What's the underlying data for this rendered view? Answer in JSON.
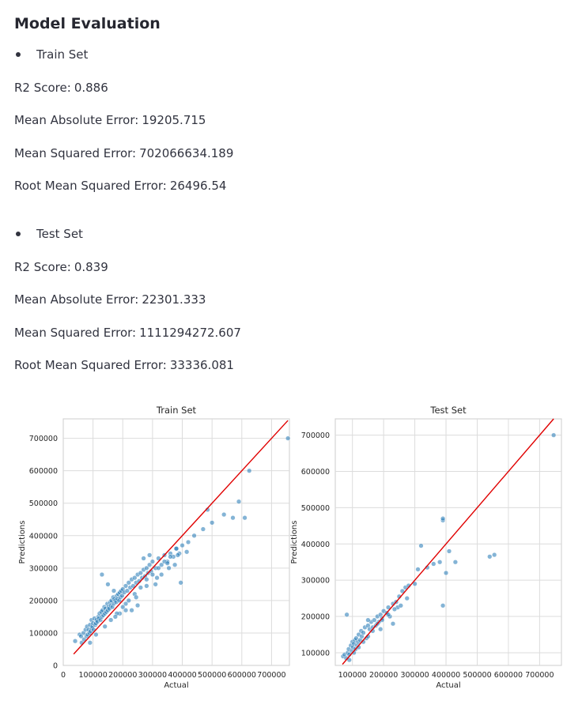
{
  "heading": "Model Evaluation",
  "train": {
    "label": "Train Set",
    "metrics": [
      {
        "name": "R2 Score:",
        "value": "0.886"
      },
      {
        "name": "Mean Absolute Error:",
        "value": "19205.715"
      },
      {
        "name": "Mean Squared Error:",
        "value": "702066634.189"
      },
      {
        "name": "Root Mean Squared Error:",
        "value": "26496.54"
      }
    ]
  },
  "test": {
    "label": "Test Set",
    "metrics": [
      {
        "name": "R2 Score:",
        "value": "0.839"
      },
      {
        "name": "Mean Absolute Error:",
        "value": "22301.333"
      },
      {
        "name": "Mean Squared Error:",
        "value": "1111294272.607"
      },
      {
        "name": "Root Mean Squared Error:",
        "value": "33336.081"
      }
    ]
  },
  "colors": {
    "point": "#1f77b4",
    "reference_line": "#e00000",
    "grid": "#dcdcdc",
    "frame": "#cccccc"
  },
  "chart_data": [
    {
      "type": "scatter",
      "title": "Train Set",
      "xlabel": "Actual",
      "ylabel": "Predictions",
      "xlim": [
        0,
        760000
      ],
      "ylim": [
        0,
        760000
      ],
      "xticks": [
        0,
        100000,
        200000,
        300000,
        400000,
        500000,
        600000,
        700000
      ],
      "xtick_labels": [
        "0",
        "100000",
        "200000",
        "300000",
        "400000",
        "500000",
        "600000",
        "700000"
      ],
      "yticks": [
        0,
        100000,
        200000,
        300000,
        400000,
        500000,
        600000,
        700000
      ],
      "ytick_labels": [
        "0",
        "100000",
        "200000",
        "300000",
        "400000",
        "500000",
        "600000",
        "700000"
      ],
      "grid": true,
      "reference_line": {
        "from": 35000,
        "to": 755000
      },
      "x": [
        40000,
        55000,
        60000,
        62000,
        68000,
        70000,
        75000,
        78000,
        80000,
        82000,
        85000,
        88000,
        90000,
        92000,
        95000,
        96000,
        98000,
        100000,
        102000,
        105000,
        108000,
        110000,
        112000,
        115000,
        118000,
        120000,
        122000,
        125000,
        128000,
        130000,
        132000,
        135000,
        138000,
        140000,
        142000,
        145000,
        148000,
        150000,
        152000,
        155000,
        158000,
        160000,
        162000,
        165000,
        168000,
        170000,
        172000,
        175000,
        178000,
        180000,
        182000,
        185000,
        188000,
        190000,
        192000,
        195000,
        198000,
        200000,
        205000,
        210000,
        215000,
        220000,
        225000,
        230000,
        235000,
        240000,
        245000,
        250000,
        255000,
        260000,
        265000,
        270000,
        275000,
        280000,
        285000,
        290000,
        295000,
        300000,
        310000,
        320000,
        330000,
        340000,
        350000,
        360000,
        370000,
        380000,
        390000,
        400000,
        420000,
        440000,
        470000,
        485000,
        500000,
        540000,
        570000,
        590000,
        610000,
        625000,
        755000,
        130000,
        150000,
        170000,
        190000,
        210000,
        230000,
        250000,
        270000,
        290000,
        310000,
        330000,
        355000,
        375000,
        395000,
        415000,
        90000,
        110000,
        140000,
        160000,
        180000,
        200000,
        220000,
        240000,
        260000,
        280000,
        300000,
        320000,
        340000,
        360000,
        380000,
        175000,
        210000,
        245000,
        280000,
        315000,
        350000,
        385000
      ],
      "y": [
        75000,
        95000,
        90000,
        70000,
        100000,
        80000,
        110000,
        90000,
        120000,
        95000,
        110000,
        100000,
        125000,
        105000,
        140000,
        115000,
        120000,
        130000,
        110000,
        145000,
        125000,
        130000,
        140000,
        135000,
        150000,
        145000,
        160000,
        140000,
        165000,
        150000,
        170000,
        155000,
        180000,
        160000,
        175000,
        165000,
        190000,
        170000,
        180000,
        175000,
        195000,
        185000,
        200000,
        180000,
        210000,
        190000,
        205000,
        200000,
        195000,
        215000,
        205000,
        220000,
        200000,
        225000,
        210000,
        230000,
        215000,
        235000,
        225000,
        245000,
        230000,
        255000,
        240000,
        265000,
        245000,
        270000,
        255000,
        280000,
        260000,
        285000,
        270000,
        295000,
        275000,
        300000,
        285000,
        310000,
        290000,
        320000,
        300000,
        330000,
        310000,
        340000,
        320000,
        345000,
        335000,
        360000,
        345000,
        370000,
        380000,
        400000,
        420000,
        480000,
        440000,
        465000,
        455000,
        505000,
        455000,
        600000,
        700000,
        280000,
        250000,
        230000,
        160000,
        190000,
        170000,
        185000,
        330000,
        340000,
        250000,
        280000,
        300000,
        310000,
        255000,
        350000,
        70000,
        95000,
        120000,
        140000,
        160000,
        180000,
        200000,
        220000,
        240000,
        265000,
        280000,
        300000,
        320000,
        335000,
        360000,
        150000,
        170000,
        210000,
        245000,
        270000,
        315000,
        340000
      ]
    },
    {
      "type": "scatter",
      "title": "Test Set",
      "xlabel": "Actual",
      "ylabel": "Predictions",
      "xlim": [
        45000,
        770000
      ],
      "ylim": [
        65000,
        745000
      ],
      "xticks": [
        100000,
        200000,
        300000,
        400000,
        500000,
        600000,
        700000
      ],
      "xtick_labels": [
        "100000",
        "200000",
        "300000",
        "400000",
        "500000",
        "600000",
        "700000"
      ],
      "yticks": [
        100000,
        200000,
        300000,
        400000,
        500000,
        600000,
        700000
      ],
      "ytick_labels": [
        "100000",
        "200000",
        "300000",
        "400000",
        "500000",
        "600000",
        "700000"
      ],
      "grid": true,
      "reference_line": {
        "from": 68000,
        "to": 745000
      },
      "x": [
        70000,
        75000,
        80000,
        82000,
        85000,
        88000,
        90000,
        95000,
        98000,
        100000,
        102000,
        105000,
        108000,
        110000,
        112000,
        115000,
        118000,
        120000,
        125000,
        128000,
        130000,
        135000,
        140000,
        145000,
        150000,
        155000,
        160000,
        165000,
        170000,
        175000,
        180000,
        185000,
        190000,
        195000,
        200000,
        210000,
        215000,
        220000,
        230000,
        240000,
        245000,
        250000,
        260000,
        270000,
        280000,
        300000,
        310000,
        320000,
        340000,
        360000,
        380000,
        390000,
        390000,
        390000,
        400000,
        410000,
        430000,
        540000,
        555000,
        745000,
        90000,
        105000,
        120000,
        135000,
        150000,
        165000,
        180000,
        195000,
        215000,
        235000,
        255000,
        275000,
        150000,
        190000,
        230000
      ],
      "y": [
        90000,
        95000,
        85000,
        205000,
        100000,
        110000,
        95000,
        120000,
        105000,
        130000,
        115000,
        125000,
        135000,
        110000,
        140000,
        120000,
        130000,
        150000,
        135000,
        160000,
        145000,
        155000,
        170000,
        140000,
        175000,
        165000,
        185000,
        170000,
        190000,
        175000,
        200000,
        185000,
        205000,
        195000,
        215000,
        210000,
        225000,
        200000,
        235000,
        240000,
        225000,
        255000,
        270000,
        280000,
        285000,
        290000,
        330000,
        395000,
        335000,
        345000,
        350000,
        465000,
        470000,
        230000,
        320000,
        380000,
        350000,
        365000,
        370000,
        700000,
        80000,
        100000,
        115000,
        130000,
        145000,
        160000,
        180000,
        190000,
        205000,
        220000,
        230000,
        250000,
        190000,
        165000,
        180000
      ]
    }
  ]
}
